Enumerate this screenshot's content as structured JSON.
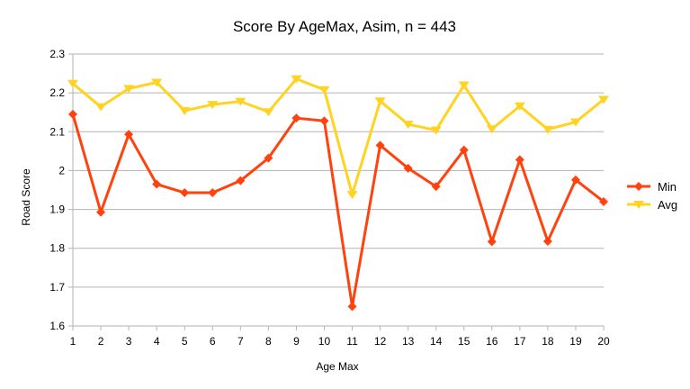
{
  "chart_data": {
    "type": "line",
    "title": "Score By AgeMax, Asim, n = 443",
    "xlabel": "Age Max",
    "ylabel": "Road Score",
    "x": [
      1,
      2,
      3,
      4,
      5,
      6,
      7,
      8,
      9,
      10,
      11,
      12,
      13,
      14,
      15,
      16,
      17,
      18,
      19,
      20
    ],
    "ylim": [
      1.6,
      2.3
    ],
    "yticks": [
      "1.6",
      "1.7",
      "1.8",
      "1.9",
      "2",
      "2.1",
      "2.2",
      "2.3"
    ],
    "grid": true,
    "legend_position": "right",
    "series": [
      {
        "name": "Min",
        "color": "#ff420e",
        "marker": "diamond",
        "values": [
          2.145,
          1.893,
          2.093,
          1.965,
          1.943,
          1.943,
          1.974,
          2.032,
          2.135,
          2.128,
          1.65,
          2.065,
          2.006,
          1.959,
          2.053,
          1.817,
          2.028,
          1.818,
          1.976,
          1.92
        ]
      },
      {
        "name": "Avg",
        "color": "#ffd320",
        "marker": "triangle-down",
        "values": [
          2.224,
          2.164,
          2.211,
          2.227,
          2.154,
          2.17,
          2.178,
          2.151,
          2.236,
          2.208,
          1.938,
          2.179,
          2.119,
          2.104,
          2.22,
          2.107,
          2.166,
          2.106,
          2.125,
          2.183
        ]
      }
    ]
  }
}
